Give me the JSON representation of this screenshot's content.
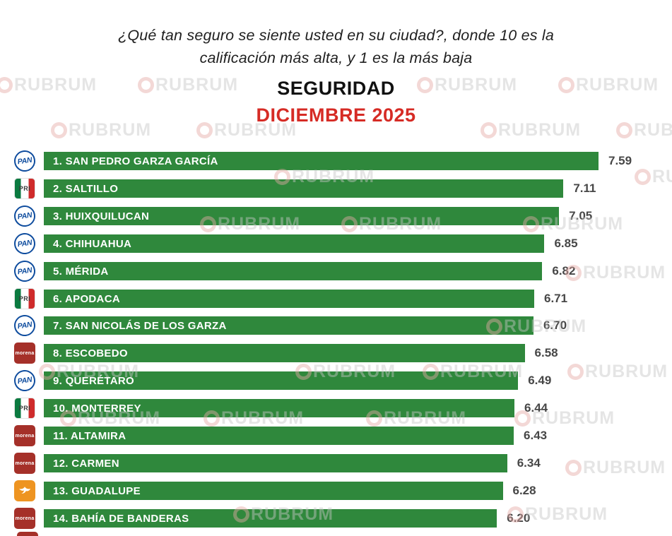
{
  "watermark": {
    "text": "RUBRUM"
  },
  "header": {
    "question_line1": "¿Qué tan seguro se siente usted en su ciudad?, donde 10 es la",
    "question_line2": "calificación más alta, y 1 es la más baja",
    "title": "SEGURIDAD",
    "subtitle": "DICIEMBRE 2025"
  },
  "parties": {
    "PAN": {
      "label": "PAN"
    },
    "PRI": {
      "label": "PRI"
    },
    "MORENA": {
      "label": "morena"
    },
    "MC": {
      "label": "Movimiento Ciudadano"
    }
  },
  "colors": {
    "bar-green": "#2f883c",
    "subtitle-red": "#d62b25",
    "question-black": "#1f1f1f",
    "value-gray": "#474747",
    "pan-blue": "#0e4c9e",
    "pri-green": "#0b7a40",
    "pri-red": "#cf2b2b",
    "morena-red": "#a53029",
    "mc-orange": "#ee9421",
    "watermark-gray": "#c6c6c6",
    "watermark-ring": "#e5aaa6"
  },
  "chart_data": {
    "type": "bar",
    "orientation": "horizontal",
    "title": "SEGURIDAD",
    "subtitle": "DICIEMBRE 2025",
    "question": "¿Qué tan seguro se siente usted en su ciudad?, donde 10 es la calificación más alta, y 1 es la más baja",
    "scale": {
      "min": 1,
      "max": 10
    },
    "xlim": [
      0,
      7.59
    ],
    "legend": "none",
    "grid": false,
    "rows": [
      {
        "rank": 1,
        "label": "1. SAN PEDRO GARZA GARCÍA",
        "party": "PAN",
        "value": 7.59,
        "value_text": "7.59"
      },
      {
        "rank": 2,
        "label": "2. SALTILLO",
        "party": "PRI",
        "value": 7.11,
        "value_text": "7.11"
      },
      {
        "rank": 3,
        "label": "3. HUIXQUILUCAN",
        "party": "PAN",
        "value": 7.05,
        "value_text": "7.05"
      },
      {
        "rank": 4,
        "label": "4. CHIHUAHUA",
        "party": "PAN",
        "value": 6.85,
        "value_text": "6.85"
      },
      {
        "rank": 5,
        "label": "5. MÉRIDA",
        "party": "PAN",
        "value": 6.82,
        "value_text": "6.82"
      },
      {
        "rank": 6,
        "label": "6. APODACA",
        "party": "PRI",
        "value": 6.71,
        "value_text": "6.71"
      },
      {
        "rank": 7,
        "label": "7. SAN NICOLÁS DE LOS GARZA",
        "party": "PAN",
        "value": 6.7,
        "value_text": "6.70"
      },
      {
        "rank": 8,
        "label": "8. ESCOBEDO",
        "party": "MORENA",
        "value": 6.58,
        "value_text": "6.58"
      },
      {
        "rank": 9,
        "label": "9. QUERÉTARO",
        "party": "PAN",
        "value": 6.49,
        "value_text": "6.49"
      },
      {
        "rank": 10,
        "label": "10. MONTERREY",
        "party": "PRI",
        "value": 6.44,
        "value_text": "6.44"
      },
      {
        "rank": 11,
        "label": "11. ALTAMIRA",
        "party": "MORENA",
        "value": 6.43,
        "value_text": "6.43"
      },
      {
        "rank": 12,
        "label": "12. CARMEN",
        "party": "MORENA",
        "value": 6.34,
        "value_text": "6.34"
      },
      {
        "rank": 13,
        "label": "13. GUADALUPE",
        "party": "MC",
        "value": 6.28,
        "value_text": "6.28"
      },
      {
        "rank": 14,
        "label": "14. BAHÍA DE BANDERAS",
        "party": "MORENA",
        "value": 6.2,
        "value_text": "6.20"
      }
    ]
  }
}
